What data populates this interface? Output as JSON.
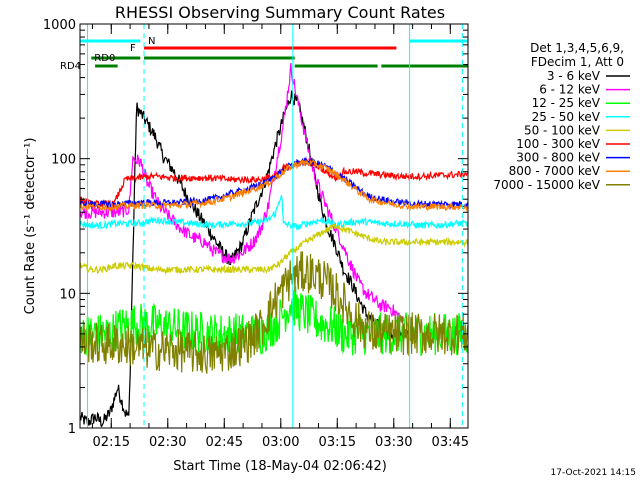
{
  "chart_data": {
    "type": "line",
    "title": "RHESSI Observing Summary Count Rates",
    "xlabel": "Start Time (18-May-04 02:06:42)",
    "ylabel": "Count Rate (s⁻¹ detector⁻¹)",
    "yscale": "log",
    "ylim": [
      1,
      1000
    ],
    "xlim_minutes": [
      0,
      103
    ],
    "x_ticks": [
      {
        "t": 8.3,
        "label": "02:15"
      },
      {
        "t": 23.3,
        "label": "02:30"
      },
      {
        "t": 38.3,
        "label": "02:45"
      },
      {
        "t": 53.3,
        "label": "03:00"
      },
      {
        "t": 68.3,
        "label": "03:15"
      },
      {
        "t": 83.3,
        "label": "03:30"
      },
      {
        "t": 98.3,
        "label": "03:45"
      }
    ],
    "y_ticks": [
      {
        "v": 1,
        "label": "1"
      },
      {
        "v": 10,
        "label": "10"
      },
      {
        "v": 100,
        "label": "100"
      },
      {
        "v": 1000,
        "label": "1000"
      }
    ],
    "legend_header": [
      "Det 1,3,4,5,6,9,",
      "FDecim 1, Att 0"
    ],
    "legend_position": "right",
    "series": [
      {
        "name": "3 - 6 keV",
        "color": "#000000",
        "x": [
          0,
          2,
          4,
          6,
          8,
          10,
          12,
          13,
          15,
          17,
          20,
          22,
          25,
          28,
          31,
          34,
          37,
          40,
          43,
          46,
          48,
          50,
          52,
          54,
          56,
          58,
          60,
          62,
          64,
          66,
          68,
          70,
          72,
          74,
          76,
          78,
          80,
          82,
          84,
          86,
          88,
          90,
          92,
          94,
          96,
          98,
          100,
          103
        ],
        "y": [
          1.2,
          1.1,
          1.2,
          1.1,
          1.3,
          2.0,
          1.3,
          1.2,
          240,
          200,
          145,
          105,
          80,
          55,
          40,
          30,
          22,
          17,
          23,
          40,
          55,
          80,
          130,
          200,
          300,
          250,
          150,
          80,
          45,
          30,
          22,
          15,
          12,
          9,
          7,
          6,
          5.5,
          5,
          5,
          5,
          5,
          5,
          5,
          5,
          5,
          5,
          5,
          5
        ],
        "drawn_to": 88
      },
      {
        "name": "6 - 12 keV",
        "color": "#ff00ff",
        "x": [
          0,
          5,
          10,
          13,
          14,
          16,
          18,
          21,
          24,
          27,
          30,
          33,
          36,
          40,
          43,
          46,
          48,
          50,
          52,
          54,
          56,
          58,
          60,
          62,
          64,
          66,
          68,
          70,
          72,
          74,
          76,
          78,
          80,
          82,
          84,
          86,
          88
        ],
        "y": [
          40,
          40,
          40,
          42,
          100,
          95,
          65,
          45,
          36,
          30,
          26,
          24,
          20,
          18,
          20,
          24,
          30,
          45,
          90,
          180,
          470,
          250,
          140,
          80,
          55,
          40,
          30,
          22,
          16,
          12,
          10,
          9,
          8,
          8,
          7,
          6,
          5
        ],
        "drawn_to": 86
      },
      {
        "name": "12 - 25 keV",
        "color": "#00ff00",
        "x": [
          0,
          5,
          8,
          10,
          15,
          20,
          25,
          30,
          35,
          40,
          45,
          48,
          50,
          52,
          54,
          56,
          58,
          60,
          62,
          64,
          66,
          68,
          70,
          72,
          74,
          76,
          78,
          80,
          85,
          90,
          95,
          100,
          103
        ],
        "y": [
          5,
          5,
          5,
          5.5,
          6,
          5.8,
          5.5,
          5.2,
          5,
          5,
          5,
          5,
          5.5,
          6,
          7,
          8.5,
          7.5,
          7,
          6.5,
          6,
          5.8,
          5.5,
          5,
          5,
          5,
          5,
          5,
          5,
          5,
          5,
          5,
          5,
          5
        ]
      },
      {
        "name": "25 - 50 keV",
        "color": "#00ffff",
        "x": [
          0,
          3,
          6,
          10,
          15,
          20,
          25,
          30,
          35,
          40,
          45,
          48,
          50,
          52,
          53.5,
          54,
          56,
          58,
          60,
          62,
          64,
          66,
          68,
          70,
          73,
          76,
          80,
          85,
          90,
          95,
          100,
          103
        ],
        "y": [
          33,
          32,
          32,
          33,
          33,
          35,
          34,
          33,
          32,
          33,
          33,
          34,
          35,
          40,
          55,
          33,
          32,
          31,
          33,
          34,
          35,
          34,
          32,
          33,
          34,
          34,
          33,
          33,
          32,
          32,
          33,
          33
        ]
      },
      {
        "name": "50 - 100 keV",
        "color": "#cccc00",
        "x": [
          0,
          3,
          6,
          9,
          12,
          15,
          20,
          25,
          30,
          35,
          40,
          45,
          48,
          50,
          52,
          53.5,
          54,
          56,
          58,
          60,
          62,
          64,
          66,
          68,
          70,
          73,
          76,
          80,
          85,
          90,
          95,
          100,
          103
        ],
        "y": [
          16,
          15,
          15,
          16,
          16,
          16,
          15,
          15,
          15,
          15,
          15,
          15,
          15,
          15,
          16,
          17,
          18,
          20,
          22,
          24,
          26,
          28,
          30,
          32,
          30,
          28,
          26,
          24,
          24,
          24,
          24,
          24,
          24
        ]
      },
      {
        "name": "100 - 300 keV",
        "color": "#ff0000",
        "x": [
          0,
          3,
          6,
          9,
          12,
          15,
          20,
          25,
          30,
          35,
          40,
          45,
          48,
          50,
          52,
          53.5,
          54,
          56,
          58,
          60,
          62,
          64,
          66,
          68,
          70,
          73,
          76,
          80,
          85,
          90,
          95,
          100,
          103
        ],
        "y": [
          50,
          46,
          46,
          46,
          70,
          72,
          74,
          72,
          72,
          72,
          70,
          70,
          70,
          72,
          75,
          80,
          85,
          88,
          92,
          95,
          92,
          85,
          78,
          72,
          80,
          80,
          78,
          76,
          74,
          74,
          75,
          76,
          78
        ]
      },
      {
        "name": "300 - 800 keV",
        "color": "#0000ff",
        "x": [
          0,
          5,
          10,
          15,
          20,
          25,
          30,
          35,
          40,
          45,
          50,
          53,
          55,
          57,
          59,
          61,
          63,
          65,
          67,
          69,
          71,
          73,
          75,
          77,
          80,
          83,
          86,
          89,
          92,
          95,
          98,
          100,
          103
        ],
        "y": [
          46,
          46,
          46,
          47,
          47,
          47,
          48,
          50,
          55,
          60,
          68,
          78,
          86,
          92,
          95,
          95,
          92,
          88,
          82,
          75,
          68,
          62,
          56,
          52,
          50,
          48,
          47,
          46,
          46,
          46,
          46,
          46,
          46
        ]
      },
      {
        "name": "800 - 7000 keV",
        "color": "#ff8000",
        "x": [
          0,
          5,
          10,
          15,
          20,
          25,
          30,
          35,
          40,
          45,
          50,
          53,
          55,
          57,
          59,
          61,
          63,
          65,
          67,
          69,
          71,
          73,
          75,
          77,
          80,
          83,
          86,
          89,
          92,
          95,
          98,
          100,
          103
        ],
        "y": [
          44,
          44,
          44,
          45,
          45,
          45,
          46,
          48,
          52,
          58,
          66,
          76,
          84,
          90,
          93,
          93,
          90,
          86,
          80,
          73,
          66,
          60,
          54,
          50,
          48,
          46,
          45,
          44,
          44,
          44,
          44,
          44,
          44
        ]
      },
      {
        "name": "7000 - 15000 keV",
        "color": "#808000",
        "x": [
          0,
          5,
          10,
          15,
          20,
          25,
          30,
          35,
          40,
          45,
          48,
          50,
          52,
          54,
          56,
          58,
          60,
          62,
          64,
          66,
          68,
          70,
          72,
          74,
          76,
          78,
          80,
          83,
          86,
          90,
          95,
          100,
          103
        ],
        "y": [
          4.5,
          4.2,
          4.2,
          4.0,
          3.8,
          3.8,
          3.6,
          3.5,
          3.8,
          4.5,
          5.5,
          7.0,
          9.0,
          11.0,
          13.0,
          14.0,
          14.5,
          14.0,
          13.0,
          11.5,
          10.0,
          8.5,
          7.0,
          6.0,
          5.5,
          5.0,
          5.0,
          5.0,
          5.0,
          5.0,
          5.0,
          5.0,
          5.0
        ]
      }
    ],
    "annotations": [
      {
        "label": "N",
        "color": "#00ffff"
      },
      {
        "label": "F",
        "color": "#ff0000"
      },
      {
        "label": "RD0",
        "color": "#000000"
      },
      {
        "label": "RD4",
        "color": "#000000"
      }
    ],
    "state_bars": {
      "N": {
        "color": "#00ffff",
        "segments": [
          [
            0,
            16
          ],
          [
            87.5,
            103
          ]
        ]
      },
      "F": {
        "color": "#ff0000",
        "segments": [
          [
            17,
            84
          ]
        ]
      },
      "RD0": {
        "color": "#008000",
        "segments": [
          [
            3,
            16
          ],
          [
            17,
            57
          ]
        ]
      },
      "RD4": {
        "color": "#008000",
        "segments": [
          [
            4,
            10
          ],
          [
            57,
            79
          ],
          [
            80,
            103
          ]
        ]
      }
    },
    "vertical_markers": [
      {
        "t": 2,
        "color": "#00ffff",
        "style": "solid"
      },
      {
        "t": 17,
        "color": "#00ffff",
        "style": "dashed"
      },
      {
        "t": 56.5,
        "color": "#00ffff",
        "style": "solid"
      },
      {
        "t": 87.5,
        "color": "#00ffff",
        "style": "solid"
      },
      {
        "t": 101.5,
        "color": "#00ffff",
        "style": "dashed"
      }
    ]
  },
  "footer": {
    "timestamp": "17-Oct-2021 14:15"
  }
}
